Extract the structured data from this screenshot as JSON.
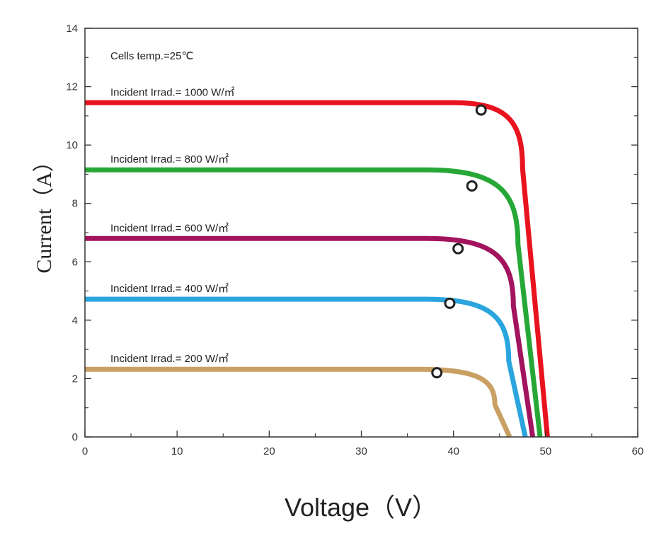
{
  "chart_data": {
    "type": "line",
    "xlabel": "Voltage（V）",
    "ylabel": "Current（A）",
    "xlim": [
      0,
      60
    ],
    "ylim": [
      0,
      14
    ],
    "x_ticks": [
      0,
      10,
      20,
      30,
      40,
      50,
      60
    ],
    "y_ticks": [
      0,
      2,
      4,
      6,
      8,
      10,
      12,
      14
    ],
    "grid": false,
    "annotation": "Cells temp.=25℃",
    "series": [
      {
        "name": "Incident Irrad.= 1000 W/㎡",
        "color": "#e8131f",
        "isc": 11.45,
        "knee_v": 40.0,
        "knee_i": 11.45,
        "vbend": 47.5,
        "ibend": 9.2,
        "voc": 50.2,
        "mpp": {
          "v": 43.0,
          "i": 11.2
        }
      },
      {
        "name": "Incident Irrad.= 800 W/㎡",
        "color": "#27a836",
        "isc": 9.15,
        "knee_v": 37.0,
        "knee_i": 9.15,
        "vbend": 47.0,
        "ibend": 6.6,
        "voc": 49.4,
        "mpp": {
          "v": 42.0,
          "i": 8.6
        }
      },
      {
        "name": "Incident Irrad.= 600 W/㎡",
        "color": "#a3145e",
        "isc": 6.8,
        "knee_v": 37.0,
        "knee_i": 6.8,
        "vbend": 46.5,
        "ibend": 4.5,
        "voc": 48.6,
        "mpp": {
          "v": 40.5,
          "i": 6.45
        }
      },
      {
        "name": "Incident Irrad.= 400 W/㎡",
        "color": "#2aa5dd",
        "isc": 4.72,
        "knee_v": 37.0,
        "knee_i": 4.72,
        "vbend": 46.0,
        "ibend": 2.6,
        "voc": 47.8,
        "mpp": {
          "v": 39.6,
          "i": 4.58
        }
      },
      {
        "name": "Incident Irrad.= 200 W/㎡",
        "color": "#c9a063",
        "isc": 2.32,
        "knee_v": 36.0,
        "knee_i": 2.32,
        "vbend": 44.5,
        "ibend": 1.1,
        "voc": 46.1,
        "mpp": {
          "v": 38.2,
          "i": 2.2
        }
      }
    ]
  }
}
